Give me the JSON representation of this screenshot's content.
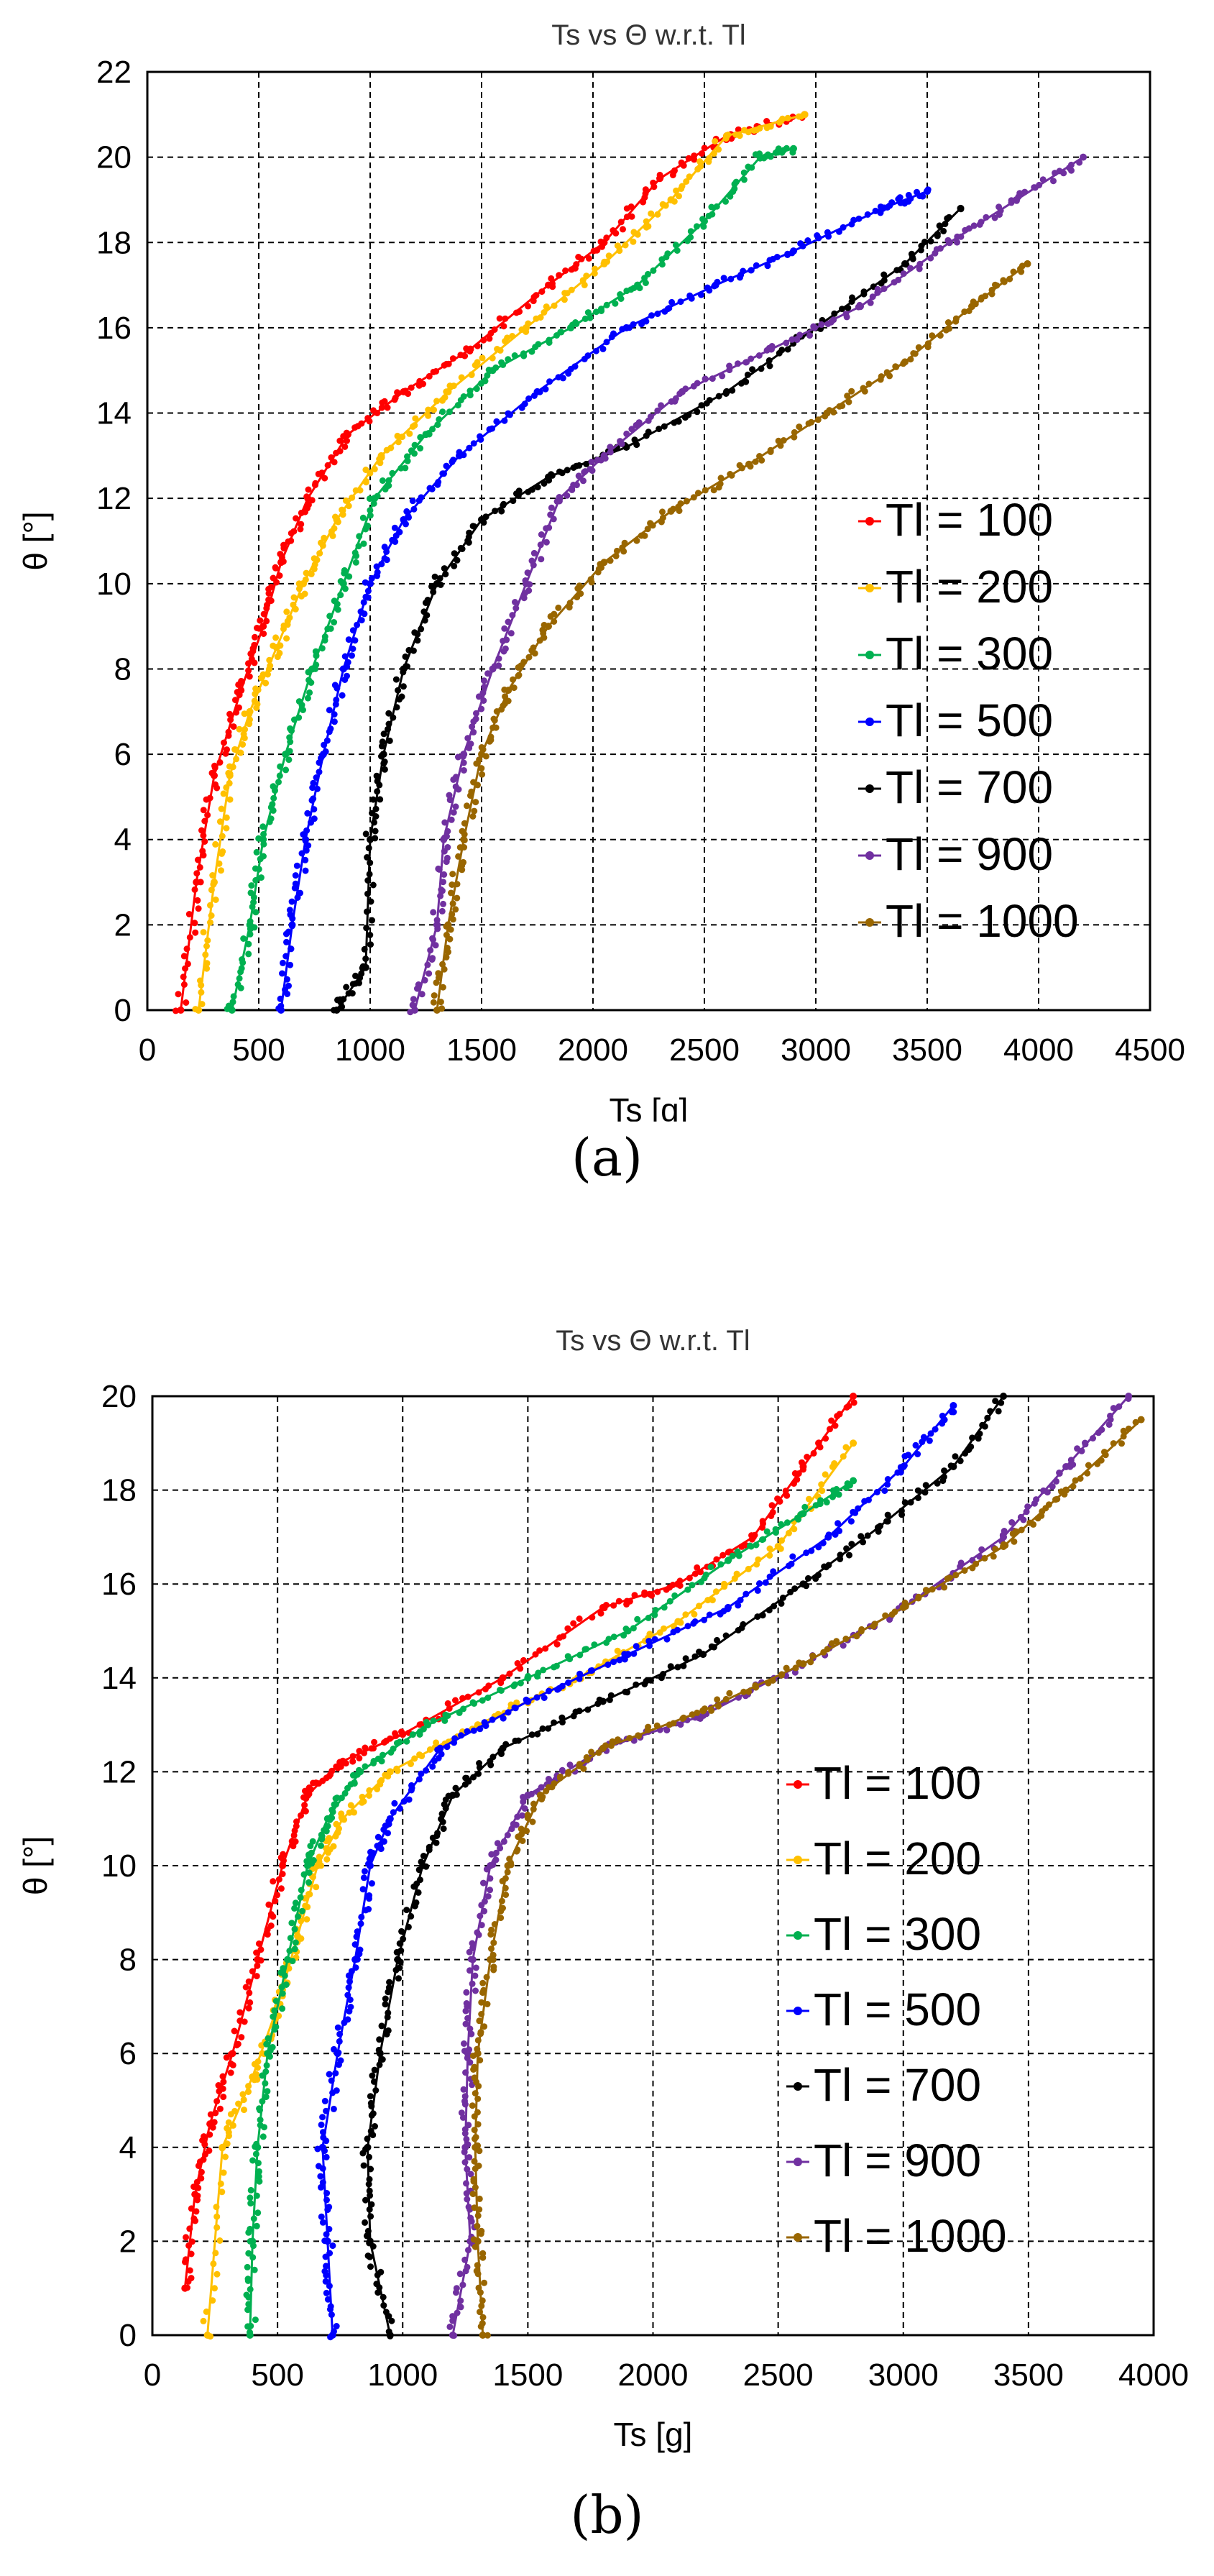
{
  "figure": {
    "caption_a": "(a)",
    "caption_b": "(b)"
  },
  "chart_data": [
    {
      "type": "line",
      "title": "Ts vs Θ w.r.t. Tl",
      "xlabel": "Ts [g]",
      "ylabel": "θ [°]",
      "xlim": [
        0,
        4500
      ],
      "ylim": [
        0,
        22
      ],
      "xticks": [
        0,
        500,
        1000,
        1500,
        2000,
        2500,
        3000,
        3500,
        4000,
        4500
      ],
      "yticks": [
        0,
        2,
        4,
        6,
        8,
        10,
        12,
        14,
        16,
        18,
        20,
        22
      ],
      "grid": true,
      "legend_position": "right-center",
      "series": [
        {
          "name": "Tl = 100",
          "color": "#ff0000",
          "x": [
            150,
            220,
            300,
            420,
            520,
            600,
            720,
            900,
            1150,
            1450,
            1800,
            2050,
            2300,
            2600,
            2950
          ],
          "y": [
            0,
            3,
            5.5,
            7.5,
            9,
            10.5,
            12,
            13.5,
            14.5,
            15.5,
            17,
            18,
            19.5,
            20.5,
            21
          ]
        },
        {
          "name": "Tl = 200",
          "color": "#ffc000",
          "x": [
            230,
            300,
            370,
            460,
            580,
            700,
            850,
            1050,
            1350,
            1700,
            2050,
            2350,
            2600,
            2950
          ],
          "y": [
            0,
            3,
            5.5,
            7,
            8.5,
            10,
            11.5,
            13,
            14.5,
            16,
            17.5,
            19,
            20.5,
            21
          ]
        },
        {
          "name": "Tl = 300",
          "color": "#00b050",
          "x": [
            380,
            460,
            520,
            620,
            740,
            880,
            1020,
            1250,
            1550,
            1900,
            2200,
            2500,
            2750,
            2900
          ],
          "y": [
            0,
            2,
            4,
            6,
            8,
            10,
            12,
            13.5,
            15,
            16,
            17,
            18.5,
            20,
            20.2
          ]
        },
        {
          "name": "Tl = 500",
          "color": "#0000ff",
          "x": [
            600,
            650,
            710,
            790,
            880,
            1000,
            1150,
            1400,
            1750,
            2150,
            2550,
            2900,
            3300,
            3500
          ],
          "y": [
            0,
            2,
            4,
            6,
            8,
            10,
            11.5,
            13,
            14.5,
            16,
            17,
            17.8,
            18.8,
            19.2
          ]
        },
        {
          "name": "Tl = 700",
          "color": "#000000",
          "x": [
            850,
            980,
            1000,
            1060,
            1150,
            1300,
            1500,
            1800,
            2150,
            2600,
            3000,
            3400,
            3650
          ],
          "y": [
            0,
            1,
            4,
            6,
            8,
            10,
            11.5,
            12.5,
            13.2,
            14.5,
            16,
            17.5,
            18.8
          ]
        },
        {
          "name": "Tl = 900",
          "color": "#7030a0",
          "x": [
            1200,
            1300,
            1330,
            1420,
            1550,
            1700,
            1850,
            2050,
            2400,
            2800,
            3200,
            3600,
            3900,
            4200
          ],
          "y": [
            0,
            2,
            4,
            6,
            8,
            10,
            12,
            13,
            14.5,
            15.5,
            16.5,
            18,
            19,
            20
          ]
        },
        {
          "name": "Tl = 1000",
          "color": "#996600",
          "x": [
            1300,
            1350,
            1420,
            1500,
            1620,
            1800,
            2050,
            2350,
            2700,
            3050,
            3400,
            3700,
            3950
          ],
          "y": [
            0,
            2,
            4,
            6,
            7.5,
            9,
            10.5,
            11.7,
            12.8,
            14,
            15.2,
            16.5,
            17.5
          ]
        }
      ]
    },
    {
      "type": "line",
      "title": "Ts vs Θ w.r.t. Tl",
      "xlabel": "Ts [g]",
      "ylabel": "θ [°]",
      "xlim": [
        0,
        4000
      ],
      "ylim": [
        0,
        20
      ],
      "xticks": [
        0,
        500,
        1000,
        1500,
        2000,
        2500,
        3000,
        3500,
        4000
      ],
      "yticks": [
        0,
        2,
        4,
        6,
        8,
        10,
        12,
        14,
        16,
        18,
        20
      ],
      "grid": true,
      "legend_position": "right-center",
      "series": [
        {
          "name": "Tl = 100",
          "color": "#ff0000",
          "x": [
            130,
            170,
            230,
            320,
            420,
            520,
            620,
            750,
            1000,
            1400,
            1800,
            2100,
            2400,
            2600,
            2800
          ],
          "y": [
            1,
            3,
            4.5,
            6,
            8,
            10,
            11.5,
            12.2,
            12.8,
            14,
            15.5,
            16,
            17,
            18.5,
            20
          ]
        },
        {
          "name": "Tl = 200",
          "color": "#ffc000",
          "x": [
            220,
            280,
            400,
            500,
            580,
            660,
            760,
            950,
            1300,
            1700,
            2100,
            2500,
            2800
          ],
          "y": [
            0,
            4,
            5.5,
            7,
            8.5,
            10,
            11,
            12,
            13,
            14,
            15.2,
            16.8,
            19
          ]
        },
        {
          "name": "Tl = 300",
          "color": "#00b050",
          "x": [
            390,
            400,
            420,
            460,
            540,
            620,
            700,
            830,
            1100,
            1500,
            1900,
            2300,
            2600,
            2800
          ],
          "y": [
            0,
            2,
            4,
            6,
            8,
            10,
            11,
            12,
            13,
            14,
            15,
            16.5,
            17.5,
            18.2
          ]
        },
        {
          "name": "Tl = 500",
          "color": "#0000ff",
          "x": [
            720,
            700,
            680,
            740,
            810,
            870,
            950,
            1150,
            1500,
            1900,
            2300,
            2700,
            3000,
            3200
          ],
          "y": [
            0,
            2,
            4,
            6,
            8,
            10,
            11,
            12.5,
            13.5,
            14.5,
            15.5,
            17,
            18.5,
            19.8
          ]
        },
        {
          "name": "Tl = 700",
          "color": "#000000",
          "x": [
            950,
            870,
            860,
            910,
            980,
            1080,
            1200,
            1400,
            1800,
            2200,
            2600,
            2900,
            3200,
            3400
          ],
          "y": [
            0,
            2,
            4,
            6,
            8,
            10,
            11.5,
            12.5,
            13.5,
            14.5,
            16,
            17.2,
            18.5,
            20
          ]
        },
        {
          "name": "Tl = 900",
          "color": "#7030a0",
          "x": [
            1200,
            1270,
            1250,
            1260,
            1280,
            1350,
            1500,
            1800,
            2200,
            2600,
            3000,
            3400,
            3650,
            3900
          ],
          "y": [
            0,
            2,
            4,
            6,
            8,
            10,
            11.5,
            12.5,
            13.2,
            14.3,
            15.5,
            17,
            18.5,
            20
          ]
        },
        {
          "name": "Tl = 1000",
          "color": "#996600",
          "x": [
            1320,
            1300,
            1290,
            1300,
            1350,
            1420,
            1550,
            1800,
            2200,
            2600,
            3000,
            3400,
            3650,
            3950
          ],
          "y": [
            0,
            2,
            4,
            6,
            8,
            10,
            11.5,
            12.5,
            13.3,
            14.3,
            15.5,
            16.8,
            18,
            19.5
          ]
        }
      ]
    }
  ]
}
